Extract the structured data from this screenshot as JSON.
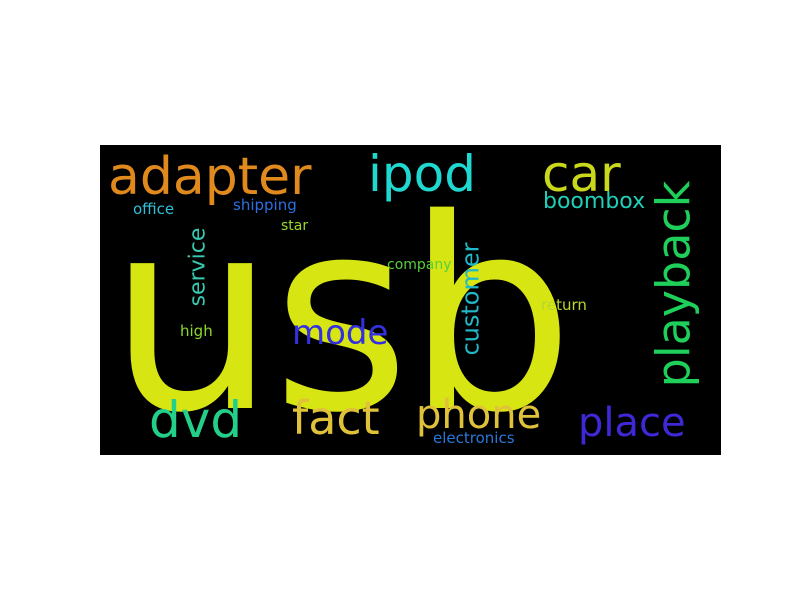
{
  "wordcloud": {
    "background": "#000000",
    "words": {
      "usb": {
        "text": "usb",
        "color": "#d7e512"
      },
      "adapter": {
        "text": "adapter",
        "color": "#e08a1e"
      },
      "ipod": {
        "text": "ipod",
        "color": "#1fd8d0"
      },
      "car": {
        "text": "car",
        "color": "#c9d81a"
      },
      "playback": {
        "text": "playback",
        "color": "#1ed05a"
      },
      "boombox": {
        "text": "boombox",
        "color": "#1fd0b8"
      },
      "office": {
        "text": "office",
        "color": "#2ec0d8"
      },
      "shipping": {
        "text": "shipping",
        "color": "#2b6fe0"
      },
      "star": {
        "text": "star",
        "color": "#9ad82a"
      },
      "service": {
        "text": "service",
        "color": "#38c8b0"
      },
      "company": {
        "text": "company",
        "color": "#58d03a"
      },
      "customer": {
        "text": "customer",
        "color": "#21b8c8"
      },
      "return": {
        "text": "return",
        "color": "#b8d82a"
      },
      "high": {
        "text": "high",
        "color": "#8ed82a"
      },
      "mode": {
        "text": "mode",
        "color": "#3330e0"
      },
      "dvd": {
        "text": "dvd",
        "color": "#22d08a"
      },
      "fact": {
        "text": "fact",
        "color": "#e0c23a"
      },
      "phone": {
        "text": "phone",
        "color": "#e0c23a"
      },
      "place": {
        "text": "place",
        "color": "#3e28d8"
      },
      "electronics": {
        "text": "electronics",
        "color": "#2878d8"
      }
    }
  }
}
